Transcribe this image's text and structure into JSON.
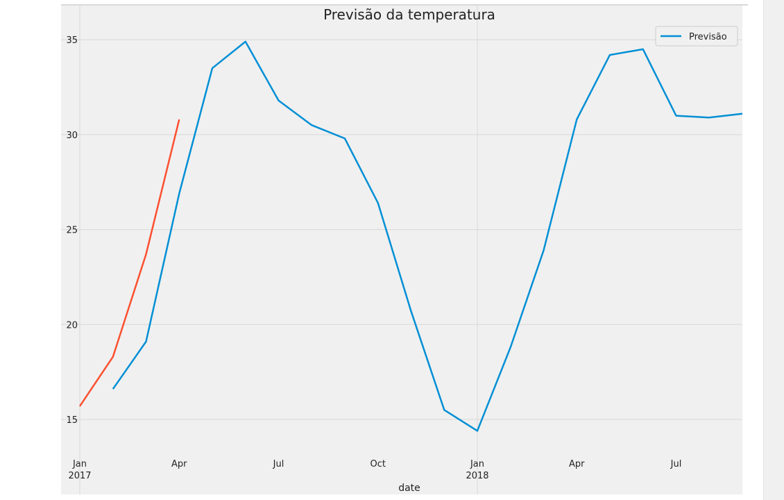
{
  "chart_data": {
    "type": "line",
    "title": "Previsão da temperatura",
    "xlabel": "date",
    "ylabel": "",
    "ylim": [
      13.5,
      36.8
    ],
    "xlim": [
      "2017-01",
      "2018-09"
    ],
    "x_ticks": [
      {
        "month": "2017-01",
        "label": "Jan",
        "sublabel": "2017"
      },
      {
        "month": "2017-04",
        "label": "Apr",
        "sublabel": ""
      },
      {
        "month": "2017-07",
        "label": "Jul",
        "sublabel": ""
      },
      {
        "month": "2017-10",
        "label": "Oct",
        "sublabel": ""
      },
      {
        "month": "2018-01",
        "label": "Jan",
        "sublabel": "2018"
      },
      {
        "month": "2018-04",
        "label": "Apr",
        "sublabel": ""
      },
      {
        "month": "2018-07",
        "label": "Jul",
        "sublabel": ""
      }
    ],
    "y_ticks": [
      15,
      20,
      25,
      30,
      35
    ],
    "grid": true,
    "legend": {
      "position": "top-right",
      "entries": [
        "Previsão"
      ]
    },
    "series": [
      {
        "name": "",
        "color": "#fc4f30",
        "points": [
          {
            "x": "2017-01",
            "y": 15.7
          },
          {
            "x": "2017-02",
            "y": 18.3
          },
          {
            "x": "2017-03",
            "y": 23.7
          },
          {
            "x": "2017-04",
            "y": 30.8
          }
        ]
      },
      {
        "name": "Previsão",
        "color": "#008fd5",
        "points": [
          {
            "x": "2017-02",
            "y": 16.6
          },
          {
            "x": "2017-03",
            "y": 19.1
          },
          {
            "x": "2017-04",
            "y": 26.9
          },
          {
            "x": "2017-05",
            "y": 33.5
          },
          {
            "x": "2017-06",
            "y": 34.9
          },
          {
            "x": "2017-07",
            "y": 31.8
          },
          {
            "x": "2017-08",
            "y": 30.5
          },
          {
            "x": "2017-09",
            "y": 29.8
          },
          {
            "x": "2017-10",
            "y": 26.4
          },
          {
            "x": "2017-11",
            "y": 20.7
          },
          {
            "x": "2017-12",
            "y": 15.5
          },
          {
            "x": "2018-01",
            "y": 14.4
          },
          {
            "x": "2018-02",
            "y": 18.8
          },
          {
            "x": "2018-03",
            "y": 23.9
          },
          {
            "x": "2018-04",
            "y": 30.8
          },
          {
            "x": "2018-05",
            "y": 34.2
          },
          {
            "x": "2018-06",
            "y": 34.5
          },
          {
            "x": "2018-07",
            "y": 31.0
          },
          {
            "x": "2018-08",
            "y": 30.9
          },
          {
            "x": "2018-09",
            "y": 31.1
          }
        ]
      }
    ]
  }
}
